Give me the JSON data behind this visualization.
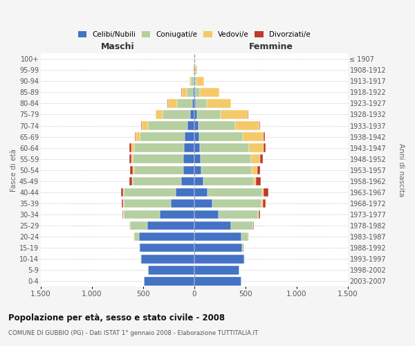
{
  "age_groups": [
    "100+",
    "95-99",
    "90-94",
    "85-89",
    "80-84",
    "75-79",
    "70-74",
    "65-69",
    "60-64",
    "55-59",
    "50-54",
    "45-49",
    "40-44",
    "35-39",
    "30-34",
    "25-29",
    "20-24",
    "15-19",
    "10-14",
    "5-9",
    "0-4"
  ],
  "birth_years": [
    "≤ 1907",
    "1908-1912",
    "1913-1917",
    "1918-1922",
    "1923-1927",
    "1928-1932",
    "1933-1937",
    "1938-1942",
    "1943-1947",
    "1948-1952",
    "1953-1957",
    "1958-1962",
    "1963-1967",
    "1968-1972",
    "1973-1977",
    "1978-1982",
    "1983-1987",
    "1988-1992",
    "1993-1997",
    "1998-2002",
    "2003-2007"
  ],
  "maschi_celibe": [
    2,
    3,
    8,
    12,
    18,
    40,
    65,
    90,
    100,
    110,
    110,
    130,
    180,
    230,
    340,
    460,
    540,
    530,
    520,
    450,
    490
  ],
  "maschi_coniugato": [
    2,
    5,
    25,
    60,
    150,
    270,
    390,
    440,
    490,
    490,
    480,
    470,
    510,
    460,
    350,
    170,
    50,
    12,
    5,
    2,
    1
  ],
  "maschi_vedovo": [
    1,
    5,
    15,
    50,
    90,
    65,
    60,
    40,
    25,
    15,
    12,
    8,
    4,
    2,
    2,
    2,
    1,
    0,
    0,
    0,
    0
  ],
  "maschi_divorziato": [
    0,
    0,
    0,
    2,
    2,
    4,
    6,
    12,
    20,
    20,
    25,
    25,
    22,
    18,
    8,
    4,
    2,
    0,
    0,
    0,
    0
  ],
  "femmine_celibe": [
    2,
    4,
    8,
    8,
    15,
    25,
    40,
    52,
    55,
    65,
    72,
    90,
    130,
    175,
    240,
    360,
    460,
    470,
    490,
    440,
    460
  ],
  "femmine_coniugato": [
    1,
    4,
    15,
    50,
    105,
    230,
    360,
    420,
    480,
    490,
    490,
    490,
    535,
    485,
    385,
    215,
    72,
    18,
    7,
    3,
    1
  ],
  "femmine_vedovo": [
    3,
    22,
    70,
    185,
    240,
    270,
    240,
    205,
    140,
    90,
    52,
    25,
    12,
    8,
    4,
    2,
    2,
    0,
    0,
    0,
    0
  ],
  "femmine_divorziato": [
    0,
    0,
    2,
    2,
    2,
    4,
    6,
    12,
    20,
    25,
    30,
    45,
    50,
    30,
    12,
    4,
    2,
    0,
    0,
    0,
    0
  ],
  "color_celibe": "#4472C4",
  "color_coniugato": "#b5cfa0",
  "color_vedovo": "#f5c96a",
  "color_divorziato": "#c0392b",
  "title": "Popolazione per età, sesso e stato civile - 2008",
  "subtitle": "COMUNE DI GUBBIO (PG) - Dati ISTAT 1° gennaio 2008 - Elaborazione TUTTITALIA.IT",
  "xlabel_maschi": "Maschi",
  "xlabel_femmine": "Femmine",
  "ylabel_left": "Fasce di età",
  "ylabel_right": "Anni di nascita",
  "xlim": 1500,
  "bg_color": "#f5f5f5",
  "plot_bg_color": "#ffffff"
}
